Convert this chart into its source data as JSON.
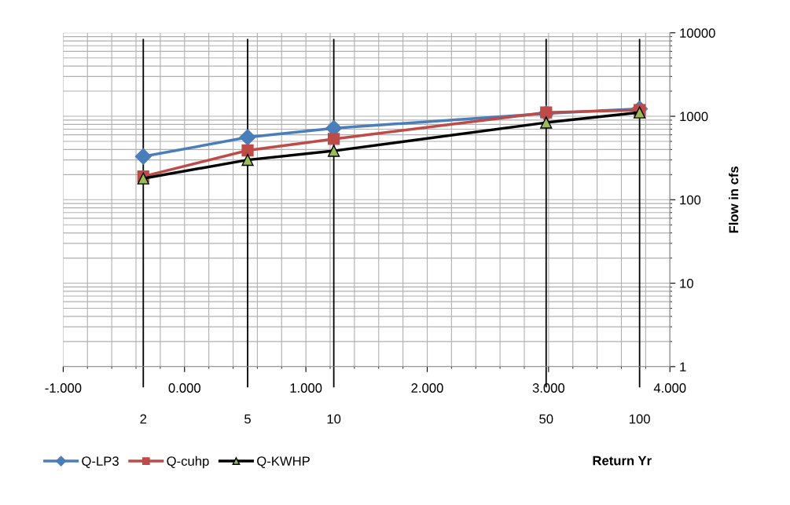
{
  "chart_data": {
    "type": "line",
    "xlabel": "Return Yr",
    "ylabel": "Flow in cfs",
    "x": [
      -0.34,
      0.52,
      1.23,
      2.98,
      3.75
    ],
    "series": [
      {
        "name": "Q-LP3",
        "color": "#4a7ebb",
        "values": [
          330,
          560,
          720,
          1080,
          1230
        ],
        "marker": "diamond"
      },
      {
        "name": "Q-cuhp",
        "color": "#be4b48",
        "values": [
          190,
          390,
          535,
          1110,
          1190
        ],
        "marker": "square"
      },
      {
        "name": "Q-KWHP",
        "color": "#000000",
        "values": [
          180,
          300,
          385,
          840,
          1110
        ],
        "marker": "triangle"
      }
    ],
    "log": "y",
    "xlim": [
      -1,
      4
    ],
    "xticks": [
      {
        "value": -1,
        "label": "-1.000"
      },
      {
        "value": 0,
        "label": "0.000"
      },
      {
        "value": 1,
        "label": "1.000"
      },
      {
        "value": 2,
        "label": "2.000"
      },
      {
        "value": 3,
        "label": "3.000"
      },
      {
        "value": 4,
        "label": "4.000"
      }
    ],
    "ylim": [
      1,
      10000
    ],
    "yticks": [
      1,
      10,
      100,
      1000,
      10000
    ],
    "ref_lines": [
      {
        "axis": "x",
        "value": -0.34,
        "color": "#000000"
      },
      {
        "axis": "x",
        "value": 0.52,
        "color": "#000000"
      },
      {
        "axis": "x",
        "value": 1.23,
        "color": "#000000"
      },
      {
        "axis": "x",
        "value": 2.98,
        "color": "#000000"
      },
      {
        "axis": "x",
        "value": 3.75,
        "color": "#000000"
      }
    ],
    "annotations": [
      "2",
      "5",
      "10",
      "50",
      "100"
    ],
    "grid": true,
    "legend": "bottom left",
    "line_style": "solid"
  }
}
